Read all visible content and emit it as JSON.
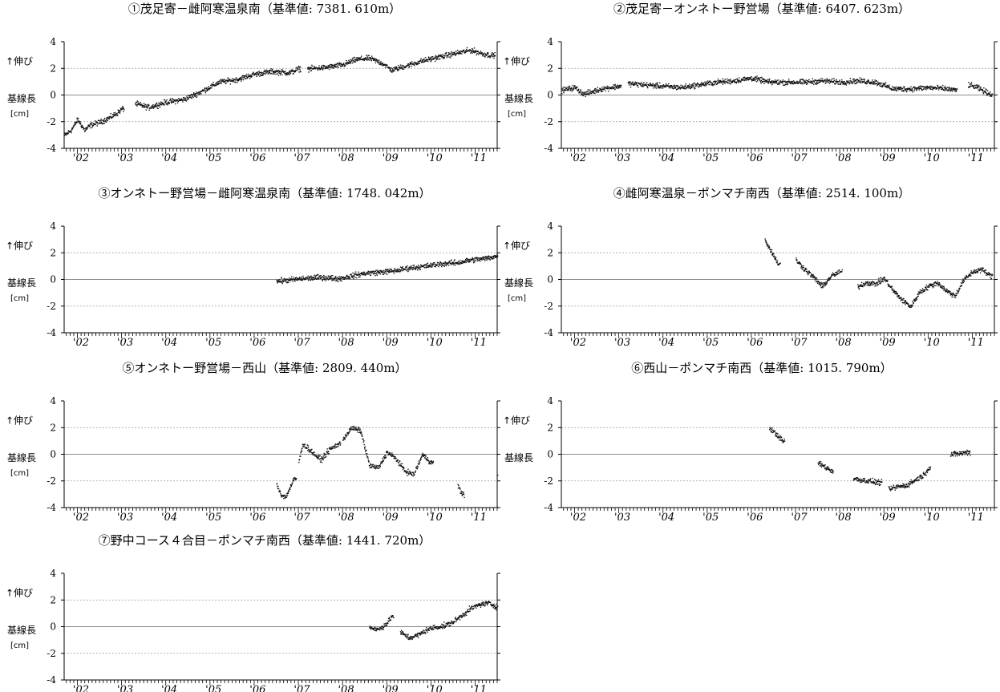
{
  "page": {
    "background": "#ffffff",
    "axis_color": "#000000",
    "point_color": "#111111",
    "zero_line_color": "#666666",
    "grid_color": "#999999"
  },
  "common": {
    "ylabel_top": "↑伸び",
    "ylabel_mid": "基線長",
    "ylabel_unit": "[cm]",
    "y_ticks": [
      "4",
      "2",
      "0",
      "-2",
      "-4"
    ],
    "x_ticks": [
      "'02",
      "'03",
      "'04",
      "'05",
      "'06",
      "'07",
      "'08",
      "'09",
      "'10",
      "'11"
    ]
  },
  "chart_data": [
    {
      "type": "scatter",
      "title": "①茂足寄－雌阿寒温泉南（基準値: 7381. 610m）",
      "xlabel": "",
      "ylabel": "↑伸び 基線長 [cm]",
      "xlim": [
        2001.7,
        2011.5
      ],
      "ylim": [
        -4,
        4
      ],
      "grid": "y",
      "x_ticks": [
        "'02",
        "'03",
        "'04",
        "'05",
        "'06",
        "'07",
        "'08",
        "'09",
        "'10",
        "'11"
      ],
      "series": [
        {
          "segments": [
            {
              "x": [
                2001.7,
                2001.85,
                2002.0,
                2002.15,
                2002.3,
                2002.5,
                2002.7,
                2002.9,
                2003.0
              ],
              "y": [
                -3.0,
                -2.6,
                -1.8,
                -2.6,
                -2.2,
                -2.0,
                -1.7,
                -1.3,
                -1.0
              ]
            },
            {
              "x": [
                2003.3,
                2003.6,
                2004.0,
                2004.4,
                2004.8,
                2005.2,
                2005.6,
                2006.0,
                2006.4,
                2006.8,
                2007.0
              ],
              "y": [
                -0.6,
                -0.9,
                -0.5,
                -0.3,
                0.3,
                1.0,
                1.2,
                1.6,
                1.8,
                1.7,
                2.0
              ]
            },
            {
              "x": [
                2007.2,
                2007.6,
                2008.0,
                2008.3,
                2008.6,
                2008.9,
                2009.1,
                2009.4,
                2009.8,
                2010.2,
                2010.6,
                2010.9,
                2011.2,
                2011.4
              ],
              "y": [
                2.0,
                2.1,
                2.3,
                2.7,
                2.8,
                2.4,
                1.9,
                2.2,
                2.6,
                2.9,
                3.2,
                3.4,
                3.1,
                3.0
              ]
            }
          ]
        }
      ]
    },
    {
      "type": "scatter",
      "title": "②茂足寄－オンネトー野営場（基準値: 6407. 623m）",
      "xlabel": "",
      "ylabel": "↑伸び 基線長 [cm]",
      "xlim": [
        2001.7,
        2011.5
      ],
      "ylim": [
        -4,
        4
      ],
      "grid": "y",
      "x_ticks": [
        "'02",
        "'03",
        "'04",
        "'05",
        "'06",
        "'07",
        "'08",
        "'09",
        "'10",
        "'11"
      ],
      "series": [
        {
          "segments": [
            {
              "x": [
                2001.7,
                2002.0,
                2002.2,
                2002.4,
                2002.6,
                2002.8,
                2003.0
              ],
              "y": [
                0.4,
                0.6,
                0.1,
                0.3,
                0.5,
                0.6,
                0.7
              ]
            },
            {
              "x": [
                2003.2,
                2003.6,
                2004.0,
                2004.4,
                2004.8,
                2005.2,
                2005.6,
                2006.0,
                2006.4,
                2006.8,
                2007.2,
                2007.6,
                2008.0,
                2008.4,
                2008.8,
                2009.2,
                2009.6,
                2010.0,
                2010.4,
                2010.6
              ],
              "y": [
                0.9,
                0.8,
                0.7,
                0.6,
                0.8,
                1.0,
                1.1,
                1.3,
                1.0,
                1.0,
                1.0,
                1.1,
                1.0,
                1.1,
                1.0,
                0.5,
                0.5,
                0.6,
                0.5,
                0.4
              ]
            },
            {
              "x": [
                2010.9,
                2011.1,
                2011.4
              ],
              "y": [
                0.8,
                0.6,
                0.1
              ]
            }
          ]
        }
      ]
    },
    {
      "type": "scatter",
      "title": "③オンネトー野営場－雌阿寒温泉南（基準値: 1748. 042m）",
      "xlabel": "",
      "ylabel": "↑伸び 基線長 [cm]",
      "xlim": [
        2001.7,
        2011.5
      ],
      "ylim": [
        -4,
        4
      ],
      "grid": "y",
      "x_ticks": [
        "'02",
        "'03",
        "'04",
        "'05",
        "'06",
        "'07",
        "'08",
        "'09",
        "'10",
        "'11"
      ],
      "series": [
        {
          "segments": [
            {
              "x": [
                2006.5,
                2006.8,
                2007.1,
                2007.5,
                2007.9,
                2008.2,
                2008.5,
                2008.9,
                2009.2,
                2009.5,
                2009.8,
                2010.2,
                2010.6,
                2010.9,
                2011.2,
                2011.5
              ],
              "y": [
                -0.1,
                0.0,
                0.1,
                0.2,
                0.1,
                0.3,
                0.5,
                0.6,
                0.7,
                0.9,
                1.0,
                1.2,
                1.3,
                1.5,
                1.6,
                1.8
              ]
            }
          ]
        }
      ]
    },
    {
      "type": "scatter",
      "title": "④雌阿寒温泉－ポンマチ南西（基準値: 2514. 100m）",
      "xlabel": "",
      "ylabel": "↑伸び 基線長 [cm]",
      "xlim": [
        2001.7,
        2011.5
      ],
      "ylim": [
        -4,
        4
      ],
      "grid": "y",
      "x_ticks": [
        "'02",
        "'03",
        "'04",
        "'05",
        "'06",
        "'07",
        "'08",
        "'09",
        "'10",
        "'11"
      ],
      "series": [
        {
          "segments": [
            {
              "x": [
                2006.3,
                2006.4,
                2006.5,
                2006.6
              ],
              "y": [
                3.0,
                2.4,
                1.8,
                1.2
              ]
            },
            {
              "x": [
                2007.0,
                2007.2,
                2007.4,
                2007.6,
                2007.8,
                2008.0
              ],
              "y": [
                1.5,
                0.8,
                0.2,
                -0.5,
                0.3,
                0.6
              ]
            },
            {
              "x": [
                2008.4,
                2008.6,
                2008.8,
                2009.0,
                2009.2,
                2009.4,
                2009.6,
                2009.8,
                2010.0,
                2010.2,
                2010.4,
                2010.6,
                2010.8,
                2011.0,
                2011.2,
                2011.4
              ],
              "y": [
                -0.5,
                -0.2,
                -0.3,
                0.1,
                -0.8,
                -1.5,
                -2.0,
                -0.9,
                -0.5,
                -0.2,
                -0.8,
                -1.2,
                0.0,
                0.6,
                0.8,
                0.3
              ]
            }
          ]
        }
      ]
    },
    {
      "type": "scatter",
      "title": "⑤オンネトー野営場－西山（基準値: 2809. 440m）",
      "xlabel": "",
      "ylabel": "↑伸び 基線長 [cm]",
      "xlim": [
        2001.7,
        2011.5
      ],
      "ylim": [
        -4,
        4
      ],
      "grid": "y",
      "x_ticks": [
        "'02",
        "'03",
        "'04",
        "'05",
        "'06",
        "'07",
        "'08",
        "'09",
        "'10",
        "'11"
      ],
      "series": [
        {
          "segments": [
            {
              "x": [
                2006.5,
                2006.6,
                2006.7,
                2006.8,
                2006.9
              ],
              "y": [
                -2.2,
                -3.0,
                -3.2,
                -2.5,
                -1.8
              ]
            },
            {
              "x": [
                2007.0,
                2007.1,
                2007.3,
                2007.5,
                2007.7,
                2007.9
              ],
              "y": [
                -0.5,
                0.8,
                0.2,
                -0.4,
                0.4,
                0.8
              ]
            },
            {
              "x": [
                2008.0,
                2008.2,
                2008.4,
                2008.6,
                2008.8,
                2009.0,
                2009.2,
                2009.4,
                2009.6,
                2009.8,
                2010.0
              ],
              "y": [
                1.2,
                2.0,
                1.8,
                -0.8,
                -1.0,
                0.2,
                -0.3,
                -1.2,
                -1.5,
                0.0,
                -0.6
              ]
            },
            {
              "x": [
                2010.6,
                2010.7
              ],
              "y": [
                -2.3,
                -3.0
              ]
            },
            {
              "x": [
                2011.5
              ],
              "y": [
                -1.5
              ]
            }
          ]
        }
      ]
    },
    {
      "type": "scatter",
      "title": "⑥西山－ポンマチ南西（基準値: 1015. 790m）",
      "xlabel": "",
      "ylabel": "↑伸び 基線長",
      "xlim": [
        2001.7,
        2011.5
      ],
      "ylim": [
        -4,
        4
      ],
      "grid": "y",
      "x_ticks": [
        "'02",
        "'03",
        "'04",
        "'05",
        "'06",
        "'07",
        "'08",
        "'09",
        "'10",
        "'11"
      ],
      "series": [
        {
          "segments": [
            {
              "x": [
                2006.4,
                2006.5,
                2006.6,
                2006.7
              ],
              "y": [
                2.0,
                1.7,
                1.4,
                1.0
              ]
            },
            {
              "x": [
                2007.5,
                2007.6,
                2007.7,
                2007.8
              ],
              "y": [
                -0.6,
                -0.8,
                -1.0,
                -1.2
              ]
            },
            {
              "x": [
                2008.3,
                2008.5,
                2008.7,
                2008.9
              ],
              "y": [
                -1.8,
                -1.9,
                -2.0,
                -2.1
              ]
            },
            {
              "x": [
                2009.1,
                2009.3,
                2009.5,
                2009.7,
                2009.9,
                2010.0
              ],
              "y": [
                -2.6,
                -2.4,
                -2.3,
                -1.9,
                -1.5,
                -1.0
              ]
            },
            {
              "x": [
                2010.5,
                2010.7,
                2010.9
              ],
              "y": [
                0.0,
                0.1,
                0.2
              ]
            }
          ]
        }
      ]
    },
    {
      "type": "scatter",
      "title": "⑦野中コース４合目－ポンマチ南西（基準値: 1441. 720m）",
      "xlabel": "",
      "ylabel": "↑伸び 基線長 [cm]",
      "xlim": [
        2001.7,
        2011.5
      ],
      "ylim": [
        -4,
        4
      ],
      "grid": "y",
      "x_ticks": [
        "'02",
        "'03",
        "'04",
        "'05",
        "'06",
        "'07",
        "'08",
        "'09",
        "'10",
        "'11"
      ],
      "series": [
        {
          "segments": [
            {
              "x": [
                2008.6,
                2008.8,
                2009.0,
                2009.1
              ],
              "y": [
                0.0,
                -0.2,
                0.3,
                0.8
              ]
            },
            {
              "x": [
                2009.3,
                2009.5,
                2009.7,
                2009.9,
                2010.1,
                2010.3,
                2010.5,
                2010.7,
                2010.9,
                2011.1,
                2011.3,
                2011.5
              ],
              "y": [
                -0.4,
                -0.8,
                -0.6,
                -0.2,
                0.0,
                0.1,
                0.4,
                0.9,
                1.4,
                1.7,
                1.8,
                1.5
              ]
            }
          ]
        }
      ]
    }
  ]
}
